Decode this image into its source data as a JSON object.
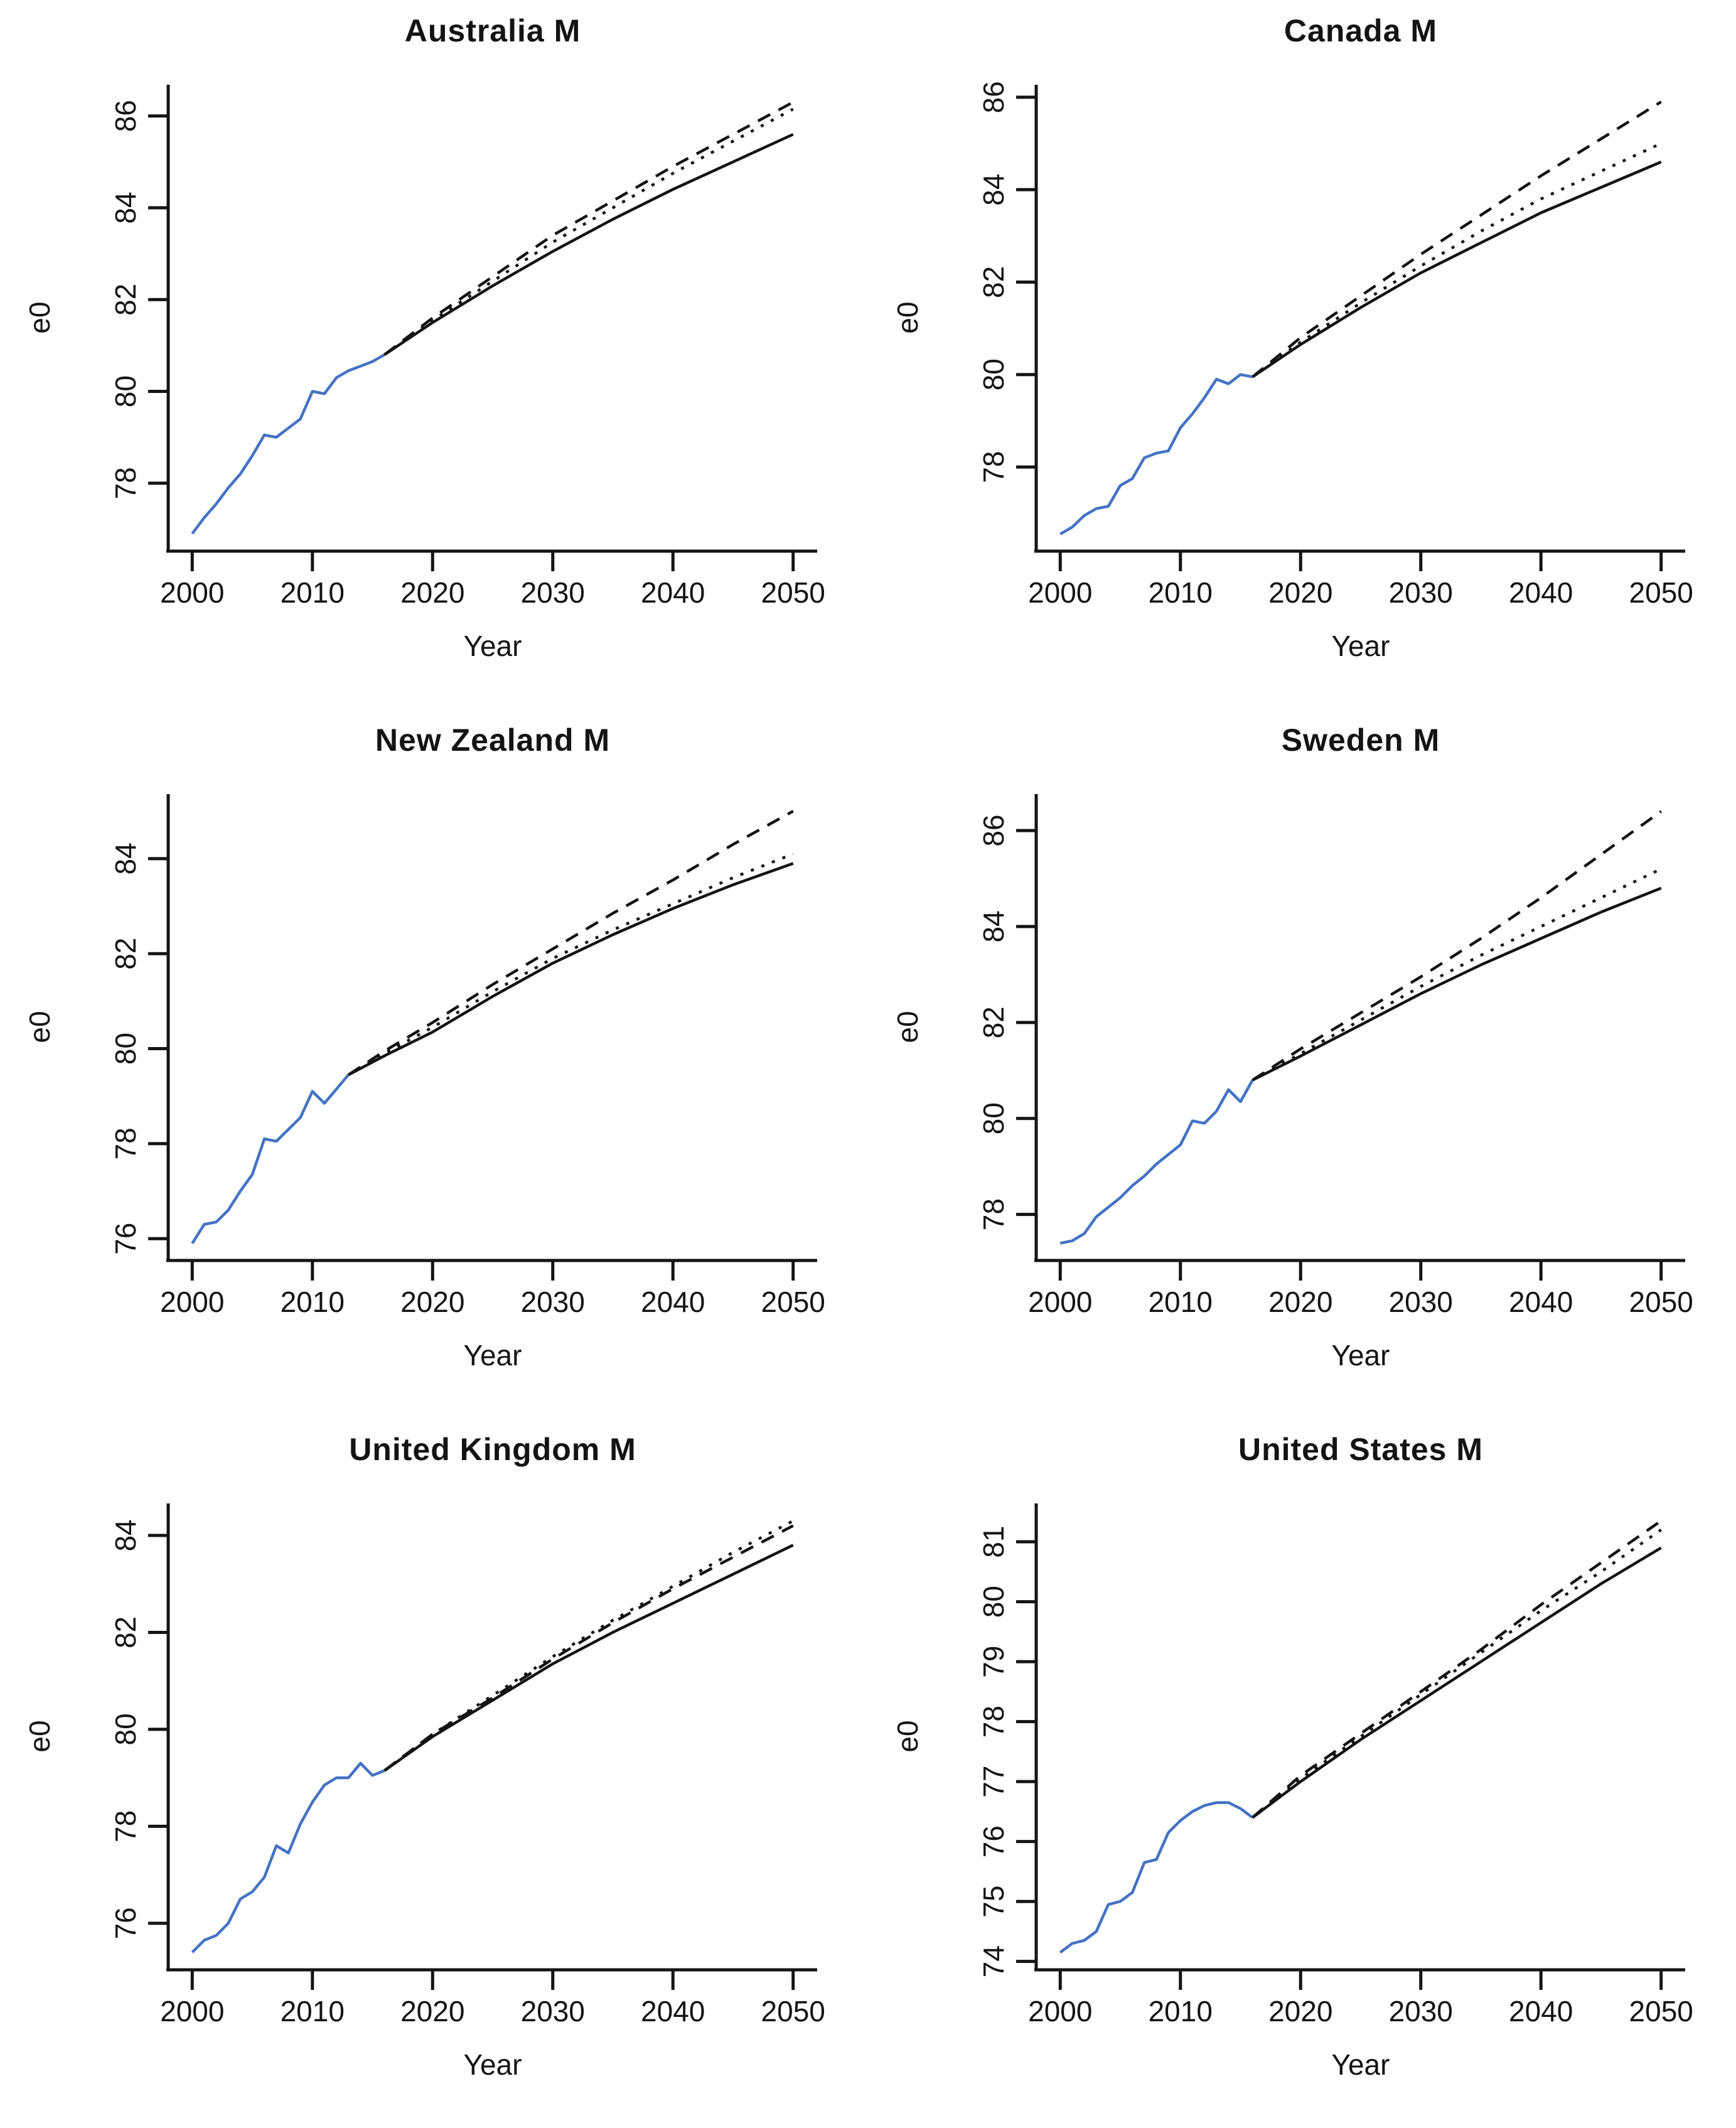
{
  "page": {
    "background": "#ffffff",
    "text_color": "#141414",
    "observed_color": "#4472C4",
    "forecast_color": "#141414"
  },
  "chart_data": [
    {
      "type": "line",
      "title": "Australia M",
      "xlabel": "Year",
      "ylabel": "e0",
      "x_ticks": [
        2000,
        2010,
        2020,
        2030,
        2040,
        2050
      ],
      "y_ticks": [
        78,
        80,
        82,
        84,
        86
      ],
      "xlim": [
        1998,
        2052
      ],
      "ylim": [
        76.52,
        86.68
      ],
      "grid": false,
      "legend": "none",
      "series": [
        {
          "name": "observed",
          "line": "solid",
          "color": "#4472C4",
          "x": [
            2000,
            2001,
            2002,
            2003,
            2004,
            2005,
            2006,
            2007,
            2008,
            2009,
            2010,
            2011,
            2012,
            2013,
            2014,
            2015,
            2016
          ],
          "y": [
            76.9,
            77.25,
            77.55,
            77.9,
            78.2,
            78.6,
            79.05,
            79.0,
            79.2,
            79.4,
            80.0,
            79.95,
            80.3,
            80.45,
            80.55,
            80.65,
            80.8
          ]
        },
        {
          "name": "forecast-solid",
          "line": "solid",
          "color": "#141414",
          "x": [
            2016,
            2020,
            2025,
            2030,
            2035,
            2040,
            2045,
            2050
          ],
          "y": [
            80.8,
            81.5,
            82.3,
            83.05,
            83.75,
            84.4,
            85.0,
            85.6
          ]
        },
        {
          "name": "forecast-dotted",
          "line": "dotted",
          "color": "#141414",
          "x": [
            2016,
            2020,
            2025,
            2030,
            2035,
            2040,
            2045,
            2050
          ],
          "y": [
            80.8,
            81.55,
            82.4,
            83.25,
            84.0,
            84.75,
            85.45,
            86.15
          ]
        },
        {
          "name": "forecast-dashed",
          "line": "dashed",
          "color": "#141414",
          "x": [
            2016,
            2020,
            2025,
            2030,
            2035,
            2040,
            2045,
            2050
          ],
          "y": [
            80.8,
            81.6,
            82.5,
            83.4,
            84.15,
            84.9,
            85.6,
            86.3
          ]
        }
      ]
    },
    {
      "type": "line",
      "title": "Canada M",
      "xlabel": "Year",
      "ylabel": "e0",
      "x_ticks": [
        2000,
        2010,
        2020,
        2030,
        2040,
        2050
      ],
      "y_ticks": [
        78,
        80,
        82,
        84,
        86
      ],
      "xlim": [
        1998,
        2052
      ],
      "ylim": [
        76.18,
        86.27
      ],
      "grid": false,
      "legend": "none",
      "series": [
        {
          "name": "observed",
          "line": "solid",
          "color": "#4472C4",
          "x": [
            2000,
            2001,
            2002,
            2003,
            2004,
            2005,
            2006,
            2007,
            2008,
            2009,
            2010,
            2011,
            2012,
            2013,
            2014,
            2015,
            2016
          ],
          "y": [
            76.55,
            76.7,
            76.95,
            77.1,
            77.15,
            77.6,
            77.75,
            78.2,
            78.3,
            78.35,
            78.85,
            79.15,
            79.5,
            79.9,
            79.8,
            80.0,
            79.95
          ]
        },
        {
          "name": "forecast-solid",
          "line": "solid",
          "color": "#141414",
          "x": [
            2016,
            2020,
            2025,
            2030,
            2035,
            2040,
            2045,
            2050
          ],
          "y": [
            79.95,
            80.65,
            81.45,
            82.2,
            82.85,
            83.5,
            84.05,
            84.6
          ]
        },
        {
          "name": "forecast-dotted",
          "line": "dotted",
          "color": "#141414",
          "x": [
            2016,
            2020,
            2025,
            2030,
            2035,
            2040,
            2045,
            2050
          ],
          "y": [
            79.95,
            80.7,
            81.55,
            82.35,
            83.1,
            83.8,
            84.4,
            85.0
          ]
        },
        {
          "name": "forecast-dashed",
          "line": "dashed",
          "color": "#141414",
          "x": [
            2016,
            2020,
            2025,
            2030,
            2035,
            2040,
            2045,
            2050
          ],
          "y": [
            79.95,
            80.8,
            81.7,
            82.6,
            83.45,
            84.3,
            85.1,
            85.9
          ]
        }
      ]
    },
    {
      "type": "line",
      "title": "New Zealand M",
      "xlabel": "Year",
      "ylabel": "e0",
      "x_ticks": [
        2000,
        2010,
        2020,
        2030,
        2040,
        2050
      ],
      "y_ticks": [
        76,
        78,
        80,
        82,
        84
      ],
      "xlim": [
        1998,
        2052
      ],
      "ylim": [
        75.54,
        85.36
      ],
      "grid": false,
      "legend": "none",
      "series": [
        {
          "name": "observed",
          "line": "solid",
          "color": "#4472C4",
          "x": [
            2000,
            2001,
            2002,
            2003,
            2004,
            2005,
            2006,
            2007,
            2008,
            2009,
            2010,
            2011,
            2012,
            2013
          ],
          "y": [
            75.9,
            76.3,
            76.35,
            76.6,
            77.0,
            77.35,
            78.1,
            78.05,
            78.3,
            78.55,
            79.1,
            78.85,
            79.15,
            79.45
          ]
        },
        {
          "name": "forecast-solid",
          "line": "solid",
          "color": "#141414",
          "x": [
            2013,
            2016,
            2020,
            2025,
            2030,
            2035,
            2040,
            2045,
            2050
          ],
          "y": [
            79.45,
            79.85,
            80.35,
            81.1,
            81.8,
            82.4,
            82.95,
            83.45,
            83.9
          ]
        },
        {
          "name": "forecast-dotted",
          "line": "dotted",
          "color": "#141414",
          "x": [
            2013,
            2016,
            2020,
            2025,
            2030,
            2035,
            2040,
            2045,
            2050
          ],
          "y": [
            79.45,
            79.9,
            80.45,
            81.2,
            81.9,
            82.5,
            83.05,
            83.6,
            84.1
          ]
        },
        {
          "name": "forecast-dashed",
          "line": "dashed",
          "color": "#141414",
          "x": [
            2013,
            2016,
            2020,
            2025,
            2030,
            2035,
            2040,
            2045,
            2050
          ],
          "y": [
            79.45,
            79.95,
            80.55,
            81.35,
            82.1,
            82.85,
            83.55,
            84.3,
            85.0
          ]
        }
      ]
    },
    {
      "type": "line",
      "title": "Sweden M",
      "xlabel": "Year",
      "ylabel": "e0",
      "x_ticks": [
        2000,
        2010,
        2020,
        2030,
        2040,
        2050
      ],
      "y_ticks": [
        78,
        80,
        82,
        84,
        86
      ],
      "xlim": [
        1998,
        2052
      ],
      "ylim": [
        77.04,
        86.76
      ],
      "grid": false,
      "legend": "none",
      "series": [
        {
          "name": "observed",
          "line": "solid",
          "color": "#4472C4",
          "x": [
            2000,
            2001,
            2002,
            2003,
            2004,
            2005,
            2006,
            2007,
            2008,
            2009,
            2010,
            2011,
            2012,
            2013,
            2014,
            2015,
            2016
          ],
          "y": [
            77.4,
            77.45,
            77.6,
            77.95,
            78.15,
            78.35,
            78.6,
            78.8,
            79.05,
            79.25,
            79.45,
            79.95,
            79.9,
            80.15,
            80.6,
            80.35,
            80.8
          ]
        },
        {
          "name": "forecast-solid",
          "line": "solid",
          "color": "#141414",
          "x": [
            2016,
            2020,
            2025,
            2030,
            2035,
            2040,
            2045,
            2050
          ],
          "y": [
            80.8,
            81.3,
            81.95,
            82.6,
            83.2,
            83.75,
            84.3,
            84.8
          ]
        },
        {
          "name": "forecast-dotted",
          "line": "dotted",
          "color": "#141414",
          "x": [
            2016,
            2020,
            2025,
            2030,
            2035,
            2040,
            2045,
            2050
          ],
          "y": [
            80.8,
            81.35,
            82.05,
            82.75,
            83.4,
            84.0,
            84.6,
            85.2
          ]
        },
        {
          "name": "forecast-dashed",
          "line": "dashed",
          "color": "#141414",
          "x": [
            2016,
            2020,
            2025,
            2030,
            2035,
            2040,
            2045,
            2050
          ],
          "y": [
            80.8,
            81.45,
            82.2,
            82.95,
            83.75,
            84.6,
            85.5,
            86.4
          ]
        }
      ]
    },
    {
      "type": "line",
      "title": "United Kingdom M",
      "xlabel": "Year",
      "ylabel": "e0",
      "x_ticks": [
        2000,
        2010,
        2020,
        2030,
        2040,
        2050
      ],
      "y_ticks": [
        76,
        78,
        80,
        82,
        84
      ],
      "xlim": [
        1998,
        2052
      ],
      "ylim": [
        75.04,
        84.66
      ],
      "grid": false,
      "legend": "none",
      "series": [
        {
          "name": "observed",
          "line": "solid",
          "color": "#4472C4",
          "x": [
            2000,
            2001,
            2002,
            2003,
            2004,
            2005,
            2006,
            2007,
            2008,
            2009,
            2010,
            2011,
            2012,
            2013,
            2014,
            2015,
            2016
          ],
          "y": [
            75.4,
            75.65,
            75.75,
            76.0,
            76.5,
            76.65,
            76.95,
            77.6,
            77.45,
            78.05,
            78.5,
            78.85,
            79.0,
            79.0,
            79.3,
            79.05,
            79.15
          ]
        },
        {
          "name": "forecast-solid",
          "line": "solid",
          "color": "#141414",
          "x": [
            2016,
            2020,
            2025,
            2030,
            2035,
            2040,
            2045,
            2050
          ],
          "y": [
            79.15,
            79.85,
            80.6,
            81.35,
            82.0,
            82.6,
            83.2,
            83.8
          ]
        },
        {
          "name": "forecast-dotted",
          "line": "dotted",
          "color": "#141414",
          "x": [
            2016,
            2020,
            2025,
            2030,
            2035,
            2040,
            2045,
            2050
          ],
          "y": [
            79.15,
            79.9,
            80.7,
            81.5,
            82.25,
            82.95,
            83.65,
            84.3
          ]
        },
        {
          "name": "forecast-dashed",
          "line": "dashed",
          "color": "#141414",
          "x": [
            2016,
            2020,
            2025,
            2030,
            2035,
            2040,
            2045,
            2050
          ],
          "y": [
            79.15,
            79.9,
            80.65,
            81.45,
            82.2,
            82.9,
            83.55,
            84.2
          ]
        }
      ]
    },
    {
      "type": "line",
      "title": "United States M",
      "xlabel": "Year",
      "ylabel": "e0",
      "x_ticks": [
        2000,
        2010,
        2020,
        2030,
        2040,
        2050
      ],
      "y_ticks": [
        74,
        75,
        76,
        77,
        78,
        79,
        80,
        81
      ],
      "xlim": [
        1998,
        2052
      ],
      "ylim": [
        73.86,
        81.64
      ],
      "grid": false,
      "legend": "none",
      "series": [
        {
          "name": "observed",
          "line": "solid",
          "color": "#4472C4",
          "x": [
            2000,
            2001,
            2002,
            2003,
            2004,
            2005,
            2006,
            2007,
            2008,
            2009,
            2010,
            2011,
            2012,
            2013,
            2014,
            2015,
            2016
          ],
          "y": [
            74.15,
            74.3,
            74.35,
            74.5,
            74.95,
            75.0,
            75.15,
            75.65,
            75.7,
            76.15,
            76.35,
            76.5,
            76.6,
            76.65,
            76.65,
            76.55,
            76.4
          ]
        },
        {
          "name": "forecast-solid",
          "line": "solid",
          "color": "#141414",
          "x": [
            2016,
            2020,
            2025,
            2030,
            2035,
            2040,
            2045,
            2050
          ],
          "y": [
            76.4,
            77.0,
            77.7,
            78.35,
            79.0,
            79.65,
            80.3,
            80.9
          ]
        },
        {
          "name": "forecast-dotted",
          "line": "dotted",
          "color": "#141414",
          "x": [
            2016,
            2020,
            2025,
            2030,
            2035,
            2040,
            2045,
            2050
          ],
          "y": [
            76.4,
            77.05,
            77.75,
            78.45,
            79.15,
            79.85,
            80.5,
            81.2
          ]
        },
        {
          "name": "forecast-dashed",
          "line": "dashed",
          "color": "#141414",
          "x": [
            2016,
            2020,
            2025,
            2030,
            2035,
            2040,
            2045,
            2050
          ],
          "y": [
            76.4,
            77.1,
            77.8,
            78.5,
            79.2,
            79.95,
            80.65,
            81.35
          ]
        }
      ]
    }
  ]
}
